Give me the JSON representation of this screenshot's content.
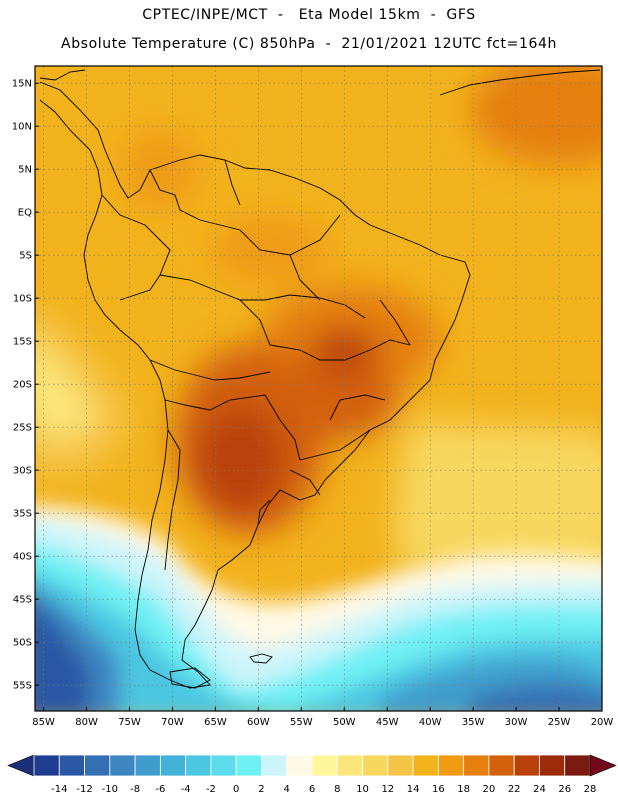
{
  "header": {
    "line1": "CPTEC/INPE/MCT  -   Eta Model 15km  -  GFS",
    "line2": "Absolute Temperature (C) 850hPa  -  21/01/2021 12UTC fct=164h"
  },
  "map": {
    "lat_labels": [
      "15N",
      "10N",
      "5N",
      "EQ",
      "5S",
      "10S",
      "15S",
      "20S",
      "25S",
      "30S",
      "35S",
      "40S",
      "45S",
      "50S",
      "55S"
    ],
    "lat_values": [
      15,
      10,
      5,
      0,
      -5,
      -10,
      -15,
      -20,
      -25,
      -30,
      -35,
      -40,
      -45,
      -50,
      -55
    ],
    "lon_labels": [
      "85W",
      "80W",
      "75W",
      "70W",
      "65W",
      "60W",
      "55W",
      "50W",
      "45W",
      "40W",
      "35W",
      "30W",
      "25W",
      "20W"
    ],
    "lon_values": [
      -85,
      -80,
      -75,
      -70,
      -65,
      -60,
      -55,
      -50,
      -45,
      -40,
      -35,
      -30,
      -25,
      -20
    ],
    "extent": {
      "lon_min": -86,
      "lon_max": -20,
      "lat_min": -58,
      "lat_max": 17
    }
  },
  "colorbar": {
    "labels": [
      "-14",
      "-12",
      "-10",
      "-8",
      "-6",
      "-4",
      "-2",
      "0",
      "2",
      "4",
      "6",
      "8",
      "10",
      "12",
      "14",
      "16",
      "18",
      "20",
      "22",
      "24",
      "26",
      "28"
    ],
    "colors": [
      "#1e3d8f",
      "#2a58a6",
      "#3570b5",
      "#3d86c2",
      "#3f9ccd",
      "#44b2d8",
      "#4cc6e1",
      "#5ddceb",
      "#6ff0f4",
      "#ccf4fb",
      "#fff9e6",
      "#fff59a",
      "#fbe67a",
      "#f8d75e",
      "#f5c446",
      "#f2b21c",
      "#ef9b14",
      "#e57f0e",
      "#d3610b",
      "#ba420a",
      "#9c2a0b",
      "#7a1a10"
    ],
    "color_below": "#1b2f78",
    "color_above": "#72071d"
  }
}
